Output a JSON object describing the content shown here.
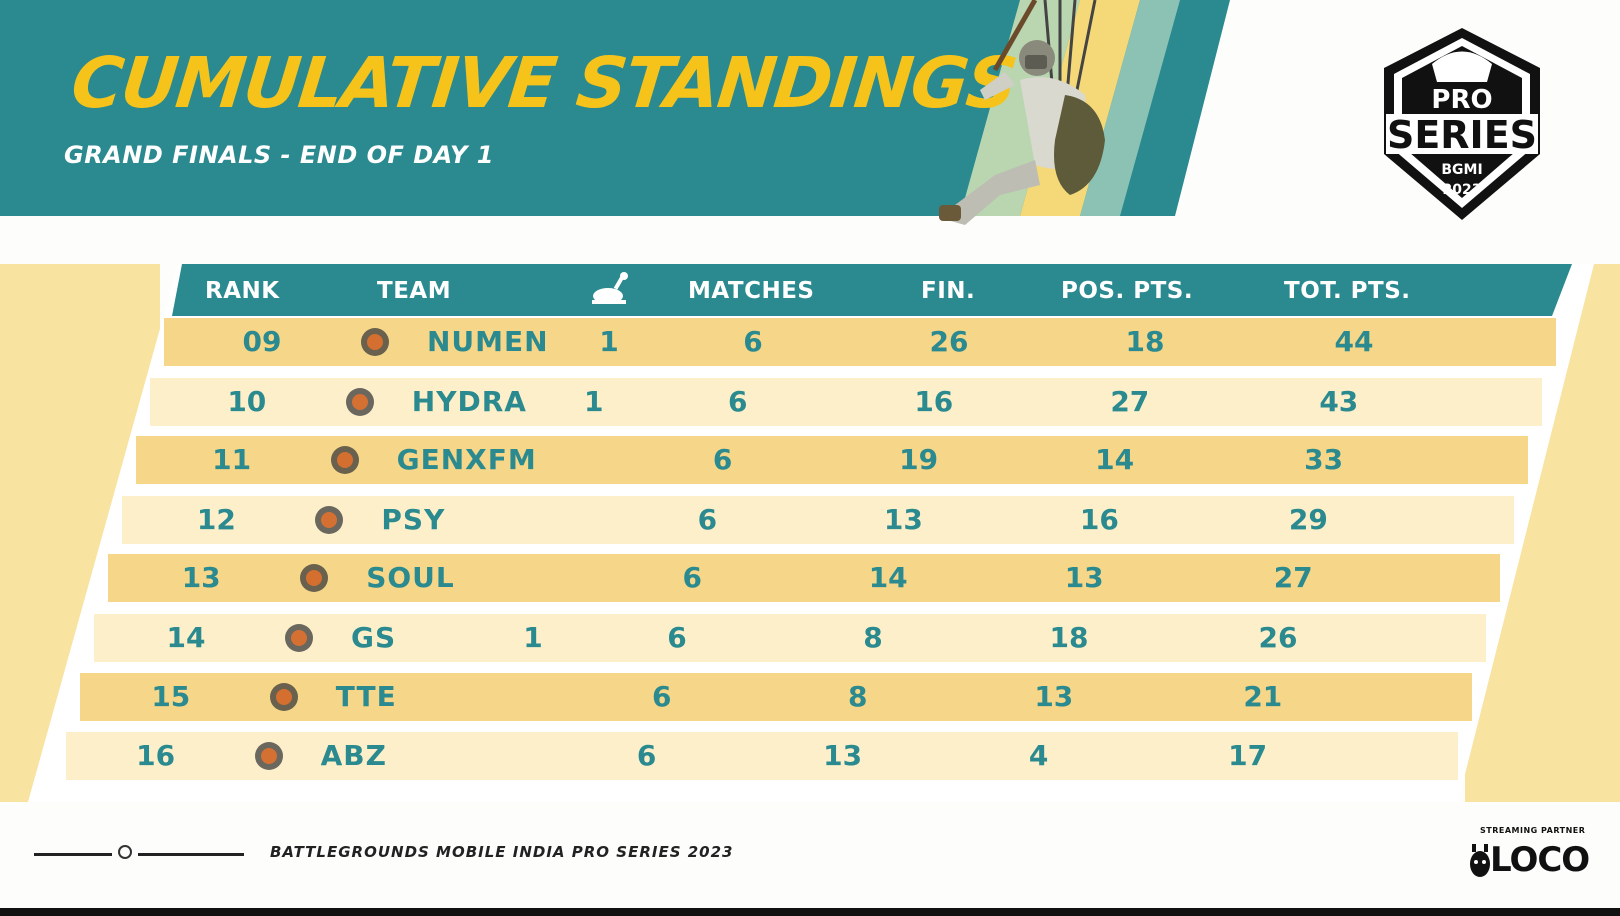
{
  "header": {
    "title": "CUMULATIVE STANDINGS",
    "subtitle": "GRAND FINALS - END OF DAY 1"
  },
  "logo": {
    "line1": "PRO",
    "line2": "SERIES",
    "line3": "BGMI",
    "line4": "2023"
  },
  "columns": {
    "rank": "RANK",
    "team": "TEAM",
    "chicken_icon": "chicken-dinner-icon",
    "matches": "MATCHES",
    "fin": "FIN.",
    "pos": "POS. PTS.",
    "tot": "TOT. PTS."
  },
  "rows": [
    {
      "rank": "09",
      "team": "NUMEN",
      "logo_text": "NUMEN",
      "wwcd": "1",
      "matches": "6",
      "fin": "26",
      "pos": "18",
      "tot": "44"
    },
    {
      "rank": "10",
      "team": "HYDRA",
      "logo_text": "HYDRA",
      "wwcd": "1",
      "matches": "6",
      "fin": "16",
      "pos": "27",
      "tot": "43"
    },
    {
      "rank": "11",
      "team": "GENXFM",
      "logo_text": "",
      "wwcd": "",
      "matches": "6",
      "fin": "19",
      "pos": "14",
      "tot": "33"
    },
    {
      "rank": "12",
      "team": "PSY",
      "logo_text": "",
      "wwcd": "",
      "matches": "6",
      "fin": "13",
      "pos": "16",
      "tot": "29"
    },
    {
      "rank": "13",
      "team": "SOUL",
      "logo_text": "SOUL",
      "wwcd": "",
      "matches": "6",
      "fin": "14",
      "pos": "13",
      "tot": "27"
    },
    {
      "rank": "14",
      "team": "GS",
      "logo_text": "GS",
      "wwcd": "1",
      "matches": "6",
      "fin": "8",
      "pos": "18",
      "tot": "26"
    },
    {
      "rank": "15",
      "team": "TTE",
      "logo_text": "TTE",
      "wwcd": "",
      "matches": "6",
      "fin": "8",
      "pos": "13",
      "tot": "21"
    },
    {
      "rank": "16",
      "team": "ABZ",
      "logo_text": "ABZ",
      "wwcd": "",
      "matches": "6",
      "fin": "13",
      "pos": "4",
      "tot": "17"
    }
  ],
  "footer": {
    "text": "BATTLEGROUNDS MOBILE INDIA PRO SERIES 2023",
    "partner_label": "STREAMING PARTNER",
    "partner_name": "LOCO"
  },
  "colors": {
    "teal": "#2a8a8f",
    "yellow_title": "#f6c31b",
    "row_dark": "#f6d688",
    "row_light": "#fcefca"
  }
}
